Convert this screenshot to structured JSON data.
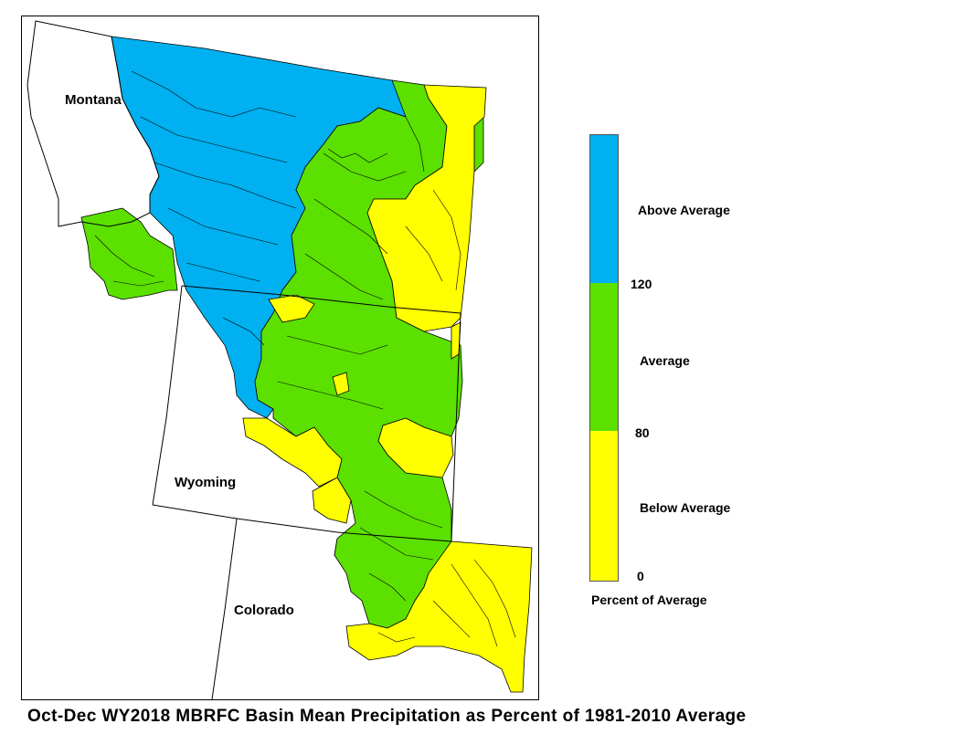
{
  "title": "Oct-Dec WY2018 MBRFC Basin Mean Precipitation as Percent of 1981-2010 Average",
  "map": {
    "states": [
      {
        "name": "Montana"
      },
      {
        "name": "Wyoming"
      },
      {
        "name": "Colorado"
      }
    ],
    "colors": {
      "above": "#00b0f0",
      "average": "#5be000",
      "below": "#ffff00",
      "outline": "#000000"
    }
  },
  "legend": {
    "title": "Percent of Average",
    "categories": [
      {
        "label": "Above Average",
        "min": 120,
        "color": "#00b0f0"
      },
      {
        "label": "Average",
        "min": 80,
        "max": 120,
        "color": "#5be000"
      },
      {
        "label": "Below Average",
        "min": 0,
        "max": 80,
        "color": "#ffff00"
      }
    ],
    "ticks": [
      "120",
      "80",
      "0"
    ]
  }
}
